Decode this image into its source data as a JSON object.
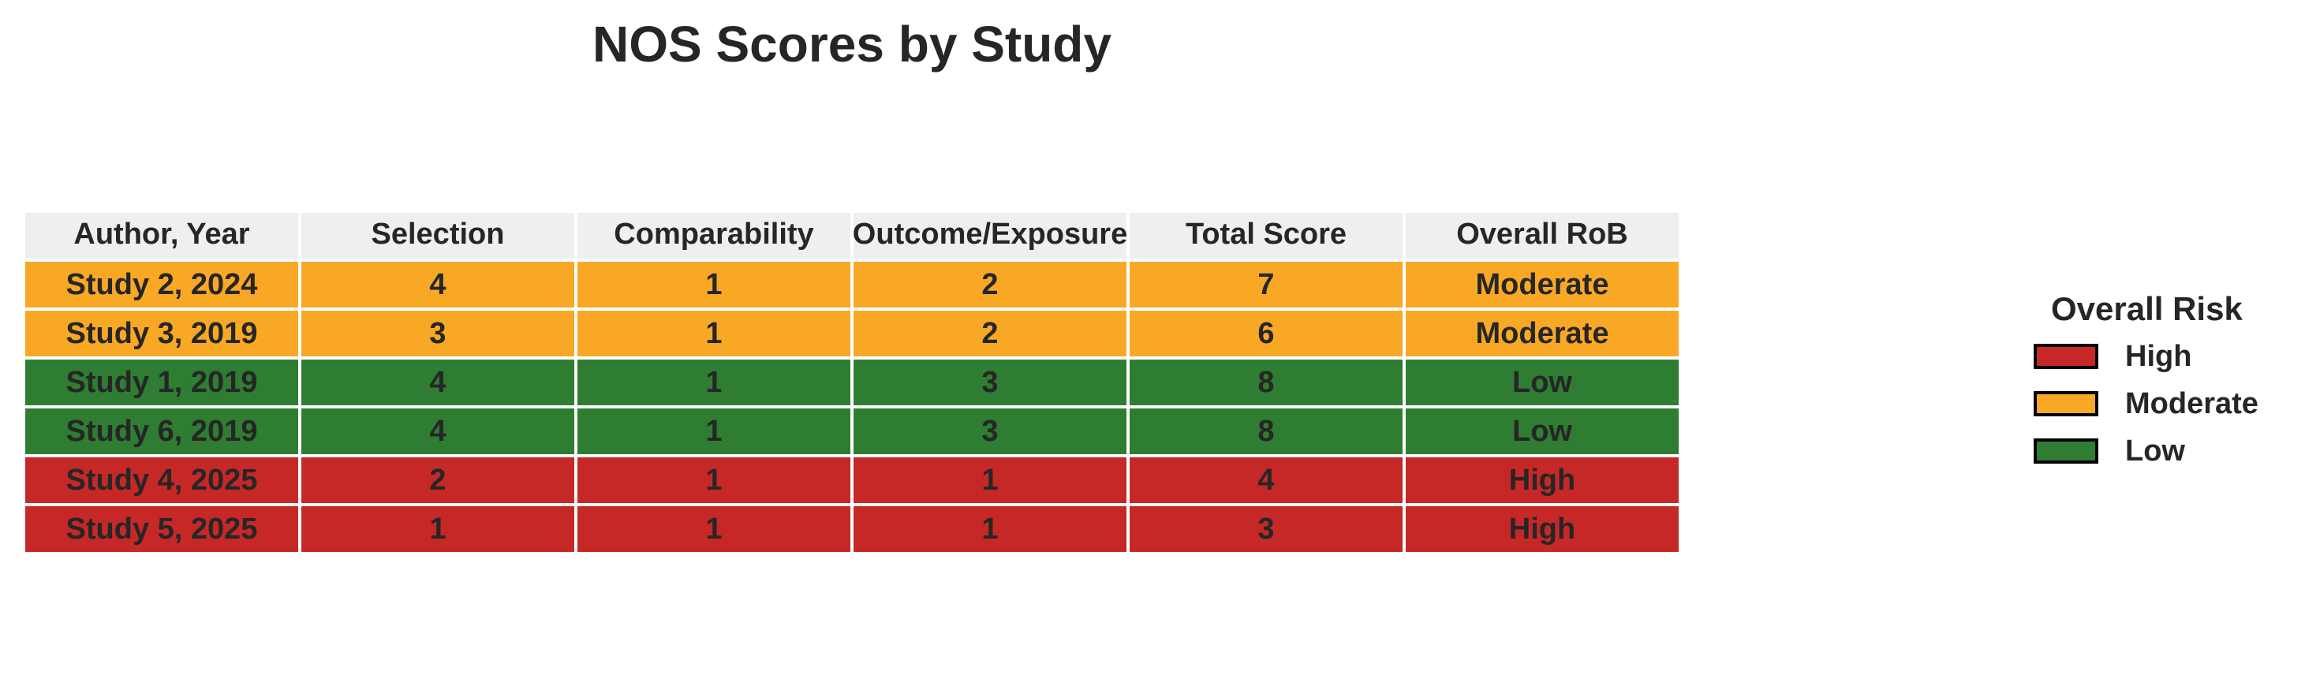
{
  "chart_data": {
    "type": "table",
    "title": "NOS Scores by Study",
    "columns": [
      "Author, Year",
      "Selection",
      "Comparability",
      "Outcome/Exposure",
      "Total Score",
      "Overall RoB"
    ],
    "rows": [
      {
        "cells": [
          "Study 2, 2024",
          "4",
          "1",
          "2",
          "7",
          "Moderate"
        ],
        "risk": "Moderate"
      },
      {
        "cells": [
          "Study 3, 2019",
          "3",
          "1",
          "2",
          "6",
          "Moderate"
        ],
        "risk": "Moderate"
      },
      {
        "cells": [
          "Study 1, 2019",
          "4",
          "1",
          "3",
          "8",
          "Low"
        ],
        "risk": "Low"
      },
      {
        "cells": [
          "Study 6, 2019",
          "4",
          "1",
          "3",
          "8",
          "Low"
        ],
        "risk": "Low"
      },
      {
        "cells": [
          "Study 4, 2025",
          "2",
          "1",
          "1",
          "4",
          "High"
        ],
        "risk": "High"
      },
      {
        "cells": [
          "Study 5, 2025",
          "1",
          "1",
          "1",
          "3",
          "High"
        ],
        "risk": "High"
      }
    ],
    "legend": {
      "title": "Overall Risk",
      "placement": "right",
      "items": [
        {
          "label": "High",
          "color": "#c62828"
        },
        {
          "label": "Moderate",
          "color": "#f9a825"
        },
        {
          "label": "Low",
          "color": "#2e7d32"
        }
      ]
    },
    "header_color": "#efefef"
  }
}
